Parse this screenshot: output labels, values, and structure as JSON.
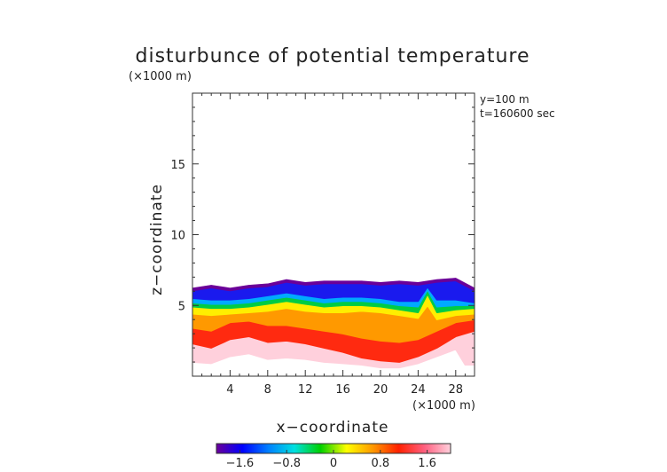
{
  "chart_data": {
    "type": "heatmap",
    "title": "disturbunce of potential temperature",
    "y_unit": "(×1000 m)",
    "x_unit": "(×1000 m)",
    "xlabel": "x−coordinate",
    "ylabel": "z−coordinate",
    "annotations": [
      "y=100 m",
      "t=160600 sec"
    ],
    "xlim": [
      0,
      30
    ],
    "ylim": [
      0,
      20
    ],
    "x_ticks": [
      4,
      8,
      12,
      16,
      20,
      24,
      28
    ],
    "x_tick_labels": [
      "4",
      "8",
      "12",
      "16",
      "20",
      "24",
      "28"
    ],
    "y_ticks": [
      5,
      10,
      15
    ],
    "y_tick_labels": [
      "5",
      "10",
      "15"
    ],
    "colorbar": {
      "range": [
        -2.0,
        2.0
      ],
      "ticks": [
        -1.6,
        -0.8,
        0,
        0.8,
        1.6
      ],
      "tick_labels": [
        "−1.6",
        "−0.8",
        "0",
        "0.8",
        "1.6"
      ],
      "colors": [
        "#6a0099",
        "#0000ff",
        "#0080ff",
        "#00e0e0",
        "#00d000",
        "#ffff00",
        "#ff9900",
        "#ff2000",
        "#ff6080",
        "#ffd0dc"
      ]
    },
    "layers": [
      {
        "value": 1.9,
        "color": "#ffd0dc",
        "top": [
          [
            0,
            6.2
          ],
          [
            2,
            6.4
          ],
          [
            4,
            6.2
          ],
          [
            6,
            6.4
          ],
          [
            8,
            6.5
          ],
          [
            10,
            6.8
          ],
          [
            12,
            6.6
          ],
          [
            14,
            6.7
          ],
          [
            16,
            6.7
          ],
          [
            18,
            6.7
          ],
          [
            20,
            6.6
          ],
          [
            22,
            6.7
          ],
          [
            24,
            6.6
          ],
          [
            26,
            6.8
          ],
          [
            28,
            6.9
          ],
          [
            30,
            6.2
          ]
        ],
        "bottom": [
          [
            0,
            1.0
          ],
          [
            2,
            0.9
          ],
          [
            4,
            1.4
          ],
          [
            6,
            1.6
          ],
          [
            8,
            1.2
          ],
          [
            10,
            1.3
          ],
          [
            12,
            1.2
          ],
          [
            14,
            1.0
          ],
          [
            16,
            0.9
          ],
          [
            18,
            0.8
          ],
          [
            20,
            0.6
          ],
          [
            22,
            0.6
          ],
          [
            24,
            0.9
          ],
          [
            26,
            1.4
          ],
          [
            28,
            1.9
          ],
          [
            29,
            0.8
          ],
          [
            30,
            0.8
          ]
        ]
      },
      {
        "value": 1.3,
        "color": "#ff2a10",
        "top": [
          [
            0,
            4.6
          ],
          [
            2,
            4.3
          ],
          [
            4,
            4.4
          ],
          [
            6,
            4.5
          ],
          [
            8,
            4.6
          ],
          [
            10,
            4.8
          ],
          [
            12,
            4.6
          ],
          [
            14,
            4.5
          ],
          [
            16,
            4.5
          ],
          [
            18,
            4.6
          ],
          [
            20,
            4.5
          ],
          [
            22,
            4.3
          ],
          [
            24,
            4.0
          ],
          [
            26,
            3.9
          ],
          [
            28,
            4.3
          ],
          [
            30,
            4.4
          ]
        ],
        "bottom": [
          [
            0,
            2.3
          ],
          [
            2,
            2.0
          ],
          [
            4,
            2.6
          ],
          [
            6,
            2.8
          ],
          [
            8,
            2.4
          ],
          [
            10,
            2.5
          ],
          [
            12,
            2.3
          ],
          [
            14,
            2.0
          ],
          [
            16,
            1.7
          ],
          [
            18,
            1.3
          ],
          [
            20,
            1.1
          ],
          [
            22,
            1.0
          ],
          [
            24,
            1.4
          ],
          [
            26,
            2.0
          ],
          [
            28,
            2.8
          ],
          [
            30,
            3.2
          ]
        ]
      },
      {
        "value": 0.8,
        "color": "#ff9900",
        "top": [
          [
            0,
            4.8
          ],
          [
            2,
            4.6
          ],
          [
            4,
            4.7
          ],
          [
            6,
            4.8
          ],
          [
            8,
            4.9
          ],
          [
            10,
            5.1
          ],
          [
            12,
            4.9
          ],
          [
            14,
            4.8
          ],
          [
            16,
            4.8
          ],
          [
            18,
            4.9
          ],
          [
            20,
            4.8
          ],
          [
            22,
            4.6
          ],
          [
            24,
            4.4
          ],
          [
            25,
            5.6
          ],
          [
            26,
            4.3
          ],
          [
            28,
            4.6
          ],
          [
            30,
            4.7
          ]
        ],
        "bottom": [
          [
            0,
            3.4
          ],
          [
            2,
            3.2
          ],
          [
            4,
            3.8
          ],
          [
            6,
            3.9
          ],
          [
            8,
            3.6
          ],
          [
            10,
            3.6
          ],
          [
            12,
            3.4
          ],
          [
            14,
            3.2
          ],
          [
            16,
            3.0
          ],
          [
            18,
            2.7
          ],
          [
            20,
            2.5
          ],
          [
            22,
            2.4
          ],
          [
            24,
            2.6
          ],
          [
            26,
            3.2
          ],
          [
            28,
            3.8
          ],
          [
            30,
            4.0
          ]
        ]
      },
      {
        "value": 0.2,
        "color": "#ffee00",
        "top": [
          [
            0,
            5.0
          ],
          [
            2,
            4.9
          ],
          [
            4,
            4.9
          ],
          [
            6,
            5.0
          ],
          [
            8,
            5.2
          ],
          [
            10,
            5.4
          ],
          [
            12,
            5.2
          ],
          [
            14,
            5.0
          ],
          [
            16,
            5.1
          ],
          [
            18,
            5.1
          ],
          [
            20,
            5.0
          ],
          [
            22,
            4.8
          ],
          [
            24,
            4.6
          ],
          [
            25,
            5.9
          ],
          [
            26,
            4.6
          ],
          [
            28,
            4.8
          ],
          [
            30,
            4.9
          ]
        ],
        "bottom": [
          [
            0,
            4.4
          ],
          [
            2,
            4.3
          ],
          [
            4,
            4.4
          ],
          [
            6,
            4.5
          ],
          [
            8,
            4.6
          ],
          [
            10,
            4.8
          ],
          [
            12,
            4.6
          ],
          [
            14,
            4.5
          ],
          [
            16,
            4.5
          ],
          [
            18,
            4.6
          ],
          [
            20,
            4.5
          ],
          [
            22,
            4.3
          ],
          [
            24,
            4.1
          ],
          [
            25,
            5.0
          ],
          [
            26,
            4.0
          ],
          [
            28,
            4.3
          ],
          [
            30,
            4.4
          ]
        ]
      },
      {
        "value": -0.4,
        "color": "#00cc44",
        "top": [
          [
            0,
            5.3
          ],
          [
            2,
            5.2
          ],
          [
            4,
            5.2
          ],
          [
            6,
            5.3
          ],
          [
            8,
            5.5
          ],
          [
            10,
            5.7
          ],
          [
            12,
            5.5
          ],
          [
            14,
            5.3
          ],
          [
            16,
            5.4
          ],
          [
            18,
            5.4
          ],
          [
            20,
            5.3
          ],
          [
            22,
            5.1
          ],
          [
            24,
            5.0
          ],
          [
            25,
            6.2
          ],
          [
            26,
            5.0
          ],
          [
            28,
            5.1
          ],
          [
            30,
            5.1
          ]
        ],
        "bottom": [
          [
            0,
            4.9
          ],
          [
            2,
            4.8
          ],
          [
            4,
            4.8
          ],
          [
            6,
            4.9
          ],
          [
            8,
            5.1
          ],
          [
            10,
            5.3
          ],
          [
            12,
            5.1
          ],
          [
            14,
            4.9
          ],
          [
            16,
            5.0
          ],
          [
            18,
            5.0
          ],
          [
            20,
            4.9
          ],
          [
            22,
            4.7
          ],
          [
            24,
            4.5
          ],
          [
            25,
            5.8
          ],
          [
            26,
            4.5
          ],
          [
            28,
            4.7
          ],
          [
            30,
            4.8
          ]
        ]
      },
      {
        "value": -0.9,
        "color": "#00aaff",
        "top": [
          [
            0,
            5.6
          ],
          [
            2,
            5.5
          ],
          [
            4,
            5.5
          ],
          [
            6,
            5.6
          ],
          [
            8,
            5.8
          ],
          [
            10,
            6.0
          ],
          [
            12,
            5.8
          ],
          [
            14,
            5.6
          ],
          [
            16,
            5.7
          ],
          [
            18,
            5.7
          ],
          [
            20,
            5.6
          ],
          [
            22,
            5.4
          ],
          [
            24,
            5.4
          ],
          [
            25,
            6.4
          ],
          [
            26,
            5.5
          ],
          [
            28,
            5.5
          ],
          [
            30,
            5.3
          ]
        ],
        "bottom": [
          [
            0,
            5.2
          ],
          [
            2,
            5.1
          ],
          [
            4,
            5.1
          ],
          [
            6,
            5.2
          ],
          [
            8,
            5.4
          ],
          [
            10,
            5.6
          ],
          [
            12,
            5.4
          ],
          [
            14,
            5.2
          ],
          [
            16,
            5.3
          ],
          [
            18,
            5.3
          ],
          [
            20,
            5.2
          ],
          [
            22,
            5.0
          ],
          [
            24,
            4.9
          ],
          [
            25,
            6.1
          ],
          [
            26,
            4.9
          ],
          [
            28,
            5.0
          ],
          [
            30,
            5.0
          ]
        ]
      },
      {
        "value": -1.5,
        "color": "#1a1aee",
        "top": [
          [
            0,
            6.1
          ],
          [
            2,
            6.3
          ],
          [
            4,
            6.1
          ],
          [
            6,
            6.3
          ],
          [
            8,
            6.4
          ],
          [
            10,
            6.7
          ],
          [
            12,
            6.5
          ],
          [
            14,
            6.6
          ],
          [
            16,
            6.6
          ],
          [
            18,
            6.6
          ],
          [
            20,
            6.5
          ],
          [
            22,
            6.6
          ],
          [
            24,
            6.5
          ],
          [
            26,
            6.7
          ],
          [
            28,
            6.8
          ],
          [
            30,
            6.1
          ]
        ],
        "bottom": [
          [
            0,
            5.5
          ],
          [
            2,
            5.4
          ],
          [
            4,
            5.4
          ],
          [
            6,
            5.5
          ],
          [
            8,
            5.7
          ],
          [
            10,
            5.9
          ],
          [
            12,
            5.7
          ],
          [
            14,
            5.5
          ],
          [
            16,
            5.6
          ],
          [
            18,
            5.6
          ],
          [
            20,
            5.5
          ],
          [
            22,
            5.3
          ],
          [
            24,
            5.3
          ],
          [
            25,
            6.3
          ],
          [
            26,
            5.4
          ],
          [
            28,
            5.4
          ],
          [
            30,
            5.2
          ]
        ]
      },
      {
        "value": -1.9,
        "color": "#6a0099",
        "top": [
          [
            0,
            6.2
          ],
          [
            2,
            6.4
          ],
          [
            4,
            6.2
          ],
          [
            6,
            6.4
          ],
          [
            8,
            6.5
          ],
          [
            10,
            6.8
          ],
          [
            12,
            6.6
          ],
          [
            14,
            6.7
          ],
          [
            16,
            6.7
          ],
          [
            18,
            6.7
          ],
          [
            20,
            6.6
          ],
          [
            22,
            6.7
          ],
          [
            24,
            6.6
          ],
          [
            26,
            6.8
          ],
          [
            28,
            6.9
          ],
          [
            30,
            6.2
          ]
        ],
        "bottom": [
          [
            0,
            6.05
          ],
          [
            2,
            6.25
          ],
          [
            4,
            6.05
          ],
          [
            6,
            6.25
          ],
          [
            8,
            6.35
          ],
          [
            10,
            6.65
          ],
          [
            12,
            6.45
          ],
          [
            14,
            6.55
          ],
          [
            16,
            6.55
          ],
          [
            18,
            6.55
          ],
          [
            20,
            6.45
          ],
          [
            22,
            6.55
          ],
          [
            24,
            6.45
          ],
          [
            26,
            6.65
          ],
          [
            28,
            6.75
          ],
          [
            30,
            6.05
          ]
        ]
      }
    ]
  }
}
